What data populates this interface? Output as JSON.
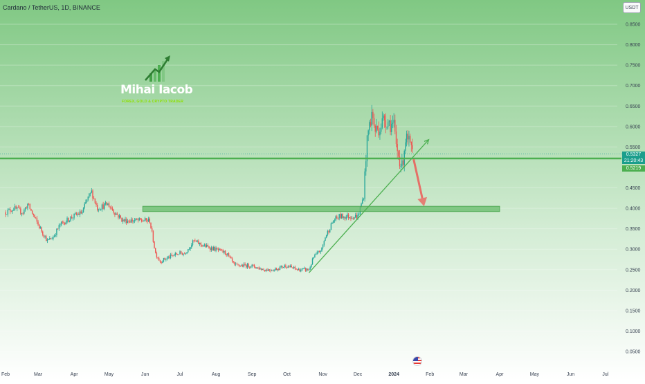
{
  "title": "Cardano / TetherUS, 1D, BINANCE",
  "currency_button": "USDT",
  "logo": {
    "name": "Mihai Iacob",
    "tagline": "FOREX, GOLD & CRYPTO TRADER",
    "icon": "rising-bar-chart-arrow-icon"
  },
  "price_tags": {
    "last_price": "0.5327",
    "countdown": "21:20:43",
    "level_price": "0.5219"
  },
  "flag_icon": "us-flag-icon",
  "colors": {
    "up": "#26a69a",
    "down": "#ef5350",
    "level_line": "#4caf50",
    "zone": "#66bb6a",
    "trendline": "#4caf50",
    "arrow": "#ef5350",
    "bg_top": "#80c883",
    "last_price_tag": "#1b9e8c"
  },
  "chart_data": {
    "type": "candlestick",
    "symbol": "ADA/USDT",
    "interval": "1D",
    "y_axis_labels": [
      "0.8500",
      "0.8000",
      "0.7500",
      "0.7000",
      "0.6500",
      "0.6000",
      "0.5500",
      "0.4500",
      "0.4000",
      "0.3500",
      "0.3000",
      "0.2500",
      "0.2000",
      "0.1500",
      "0.1000",
      "0.0500"
    ],
    "y_range": [
      0.03,
      0.885
    ],
    "x_axis_labels": [
      "Feb",
      "Mar",
      "Apr",
      "May",
      "Jun",
      "Jul",
      "Aug",
      "Sep",
      "Oct",
      "Nov",
      "Dec",
      "2024",
      "Feb",
      "Mar",
      "Apr",
      "May",
      "Jun",
      "Jul"
    ],
    "x_start_date": "2023-02-01",
    "x_end_date": "2024-07-31",
    "close_anchors": [
      [
        "2023-02-01",
        0.39
      ],
      [
        "2023-02-08",
        0.4
      ],
      [
        "2023-02-16",
        0.39
      ],
      [
        "2023-02-20",
        0.41
      ],
      [
        "2023-03-01",
        0.36
      ],
      [
        "2023-03-09",
        0.32
      ],
      [
        "2023-03-14",
        0.33
      ],
      [
        "2023-03-20",
        0.36
      ],
      [
        "2023-03-31",
        0.38
      ],
      [
        "2023-04-08",
        0.39
      ],
      [
        "2023-04-12",
        0.42
      ],
      [
        "2023-04-16",
        0.44
      ],
      [
        "2023-04-21",
        0.4
      ],
      [
        "2023-04-30",
        0.41
      ],
      [
        "2023-05-06",
        0.39
      ],
      [
        "2023-05-13",
        0.37
      ],
      [
        "2023-05-22",
        0.37
      ],
      [
        "2023-05-31",
        0.37
      ],
      [
        "2023-06-05",
        0.37
      ],
      [
        "2023-06-10",
        0.29
      ],
      [
        "2023-06-14",
        0.27
      ],
      [
        "2023-06-21",
        0.28
      ],
      [
        "2023-06-30",
        0.29
      ],
      [
        "2023-07-05",
        0.29
      ],
      [
        "2023-07-13",
        0.32
      ],
      [
        "2023-07-20",
        0.31
      ],
      [
        "2023-07-31",
        0.3
      ],
      [
        "2023-08-10",
        0.29
      ],
      [
        "2023-08-17",
        0.26
      ],
      [
        "2023-08-31",
        0.26
      ],
      [
        "2023-09-11",
        0.25
      ],
      [
        "2023-09-20",
        0.25
      ],
      [
        "2023-09-30",
        0.26
      ],
      [
        "2023-10-10",
        0.25
      ],
      [
        "2023-10-20",
        0.25
      ],
      [
        "2023-10-24",
        0.28
      ],
      [
        "2023-10-31",
        0.3
      ],
      [
        "2023-11-03",
        0.33
      ],
      [
        "2023-11-10",
        0.37
      ],
      [
        "2023-11-15",
        0.38
      ],
      [
        "2023-11-20",
        0.38
      ],
      [
        "2023-11-27",
        0.38
      ],
      [
        "2023-12-01",
        0.38
      ],
      [
        "2023-12-03",
        0.4
      ],
      [
        "2023-12-06",
        0.43
      ],
      [
        "2023-12-08",
        0.53
      ],
      [
        "2023-12-10",
        0.59
      ],
      [
        "2023-12-13",
        0.63
      ],
      [
        "2023-12-16",
        0.59
      ],
      [
        "2023-12-20",
        0.6
      ],
      [
        "2023-12-24",
        0.62
      ],
      [
        "2023-12-28",
        0.61
      ],
      [
        "2024-01-01",
        0.6
      ],
      [
        "2024-01-03",
        0.55
      ],
      [
        "2024-01-08",
        0.5
      ],
      [
        "2024-01-11",
        0.57
      ],
      [
        "2024-01-14",
        0.56
      ],
      [
        "2024-01-17",
        0.53
      ]
    ],
    "annotations": {
      "horizontal_level": 0.5219,
      "support_zone": {
        "from_date": "2023-05-30",
        "to_date": "2024-04-01",
        "low": 0.392,
        "high": 0.405
      },
      "trendline": {
        "start": [
          "2023-10-20",
          0.2425
        ],
        "end": [
          "2024-01-31",
          0.568
        ]
      },
      "arrow": {
        "start": [
          "2024-01-18",
          0.52
        ],
        "end": [
          "2024-01-27",
          0.405
        ]
      }
    }
  }
}
